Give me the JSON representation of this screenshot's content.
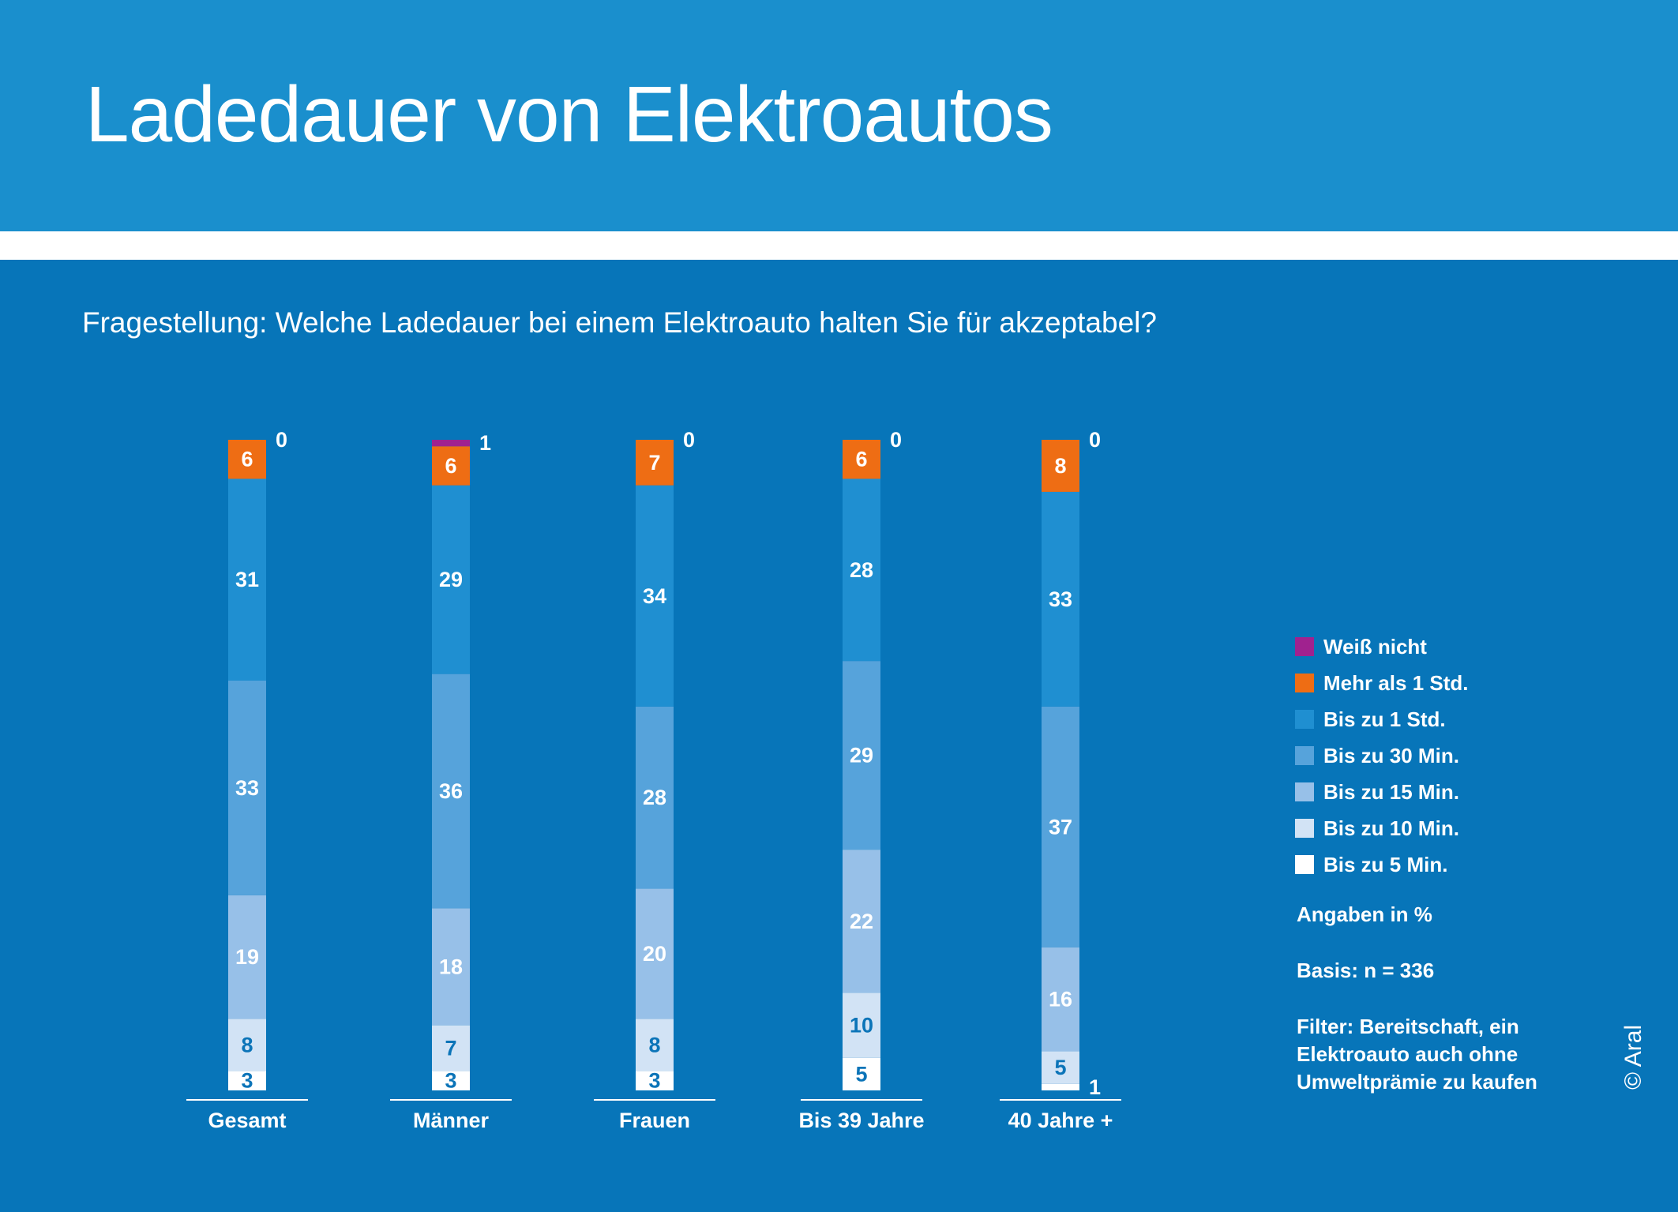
{
  "header": {
    "title": "Ladedauer von Elektroautos",
    "question": "Fragestellung: Welche Ladedauer bei einem Elektroauto halten Sie für akzeptabel?"
  },
  "legend": [
    {
      "label": "Weiß nicht",
      "color": "#a0228f"
    },
    {
      "label": "Mehr als 1 Std.",
      "color": "#ee6d14"
    },
    {
      "label": "Bis zu 1 Std.",
      "color": "#1f8fd1"
    },
    {
      "label": "Bis zu 30 Min.",
      "color": "#56a3db"
    },
    {
      "label": "Bis zu 15 Min.",
      "color": "#97c0e8"
    },
    {
      "label": "Bis zu 10 Min.",
      "color": "#d2e3f5"
    },
    {
      "label": "Bis zu 5 Min.",
      "color": "#ffffff"
    }
  ],
  "notes": {
    "unit": "Angaben in %",
    "basis": "Basis: n = 336",
    "filter": "Filter: Bereitschaft, ein Elektroauto auch ohne Umweltprämie zu kaufen"
  },
  "copyright": "© Aral",
  "chart_data": {
    "type": "bar",
    "stacked": true,
    "unit": "%",
    "categories": [
      "Gesamt",
      "Männer",
      "Frauen",
      "Bis 39 Jahre",
      "40 Jahre +"
    ],
    "series": [
      {
        "name": "Bis zu 5 Min.",
        "color": "#ffffff",
        "label_color": "#0b74b8",
        "values": [
          3,
          3,
          3,
          5,
          1
        ]
      },
      {
        "name": "Bis zu 10 Min.",
        "color": "#d2e3f5",
        "label_color": "#0b74b8",
        "values": [
          8,
          7,
          8,
          10,
          5
        ]
      },
      {
        "name": "Bis zu 15 Min.",
        "color": "#97c0e8",
        "label_color": "#ffffff",
        "values": [
          19,
          18,
          20,
          22,
          16
        ]
      },
      {
        "name": "Bis zu 30 Min.",
        "color": "#56a3db",
        "label_color": "#ffffff",
        "values": [
          33,
          36,
          28,
          29,
          37
        ]
      },
      {
        "name": "Bis zu 1 Std.",
        "color": "#1f8fd1",
        "label_color": "#ffffff",
        "values": [
          31,
          29,
          34,
          28,
          33
        ]
      },
      {
        "name": "Mehr als 1 Std.",
        "color": "#ee6d14",
        "label_color": "#ffffff",
        "values": [
          6,
          6,
          7,
          6,
          8
        ]
      },
      {
        "name": "Weiß nicht",
        "color": "#a0228f",
        "label_color": "#ffffff",
        "values": [
          0,
          1,
          0,
          0,
          0
        ]
      }
    ]
  }
}
